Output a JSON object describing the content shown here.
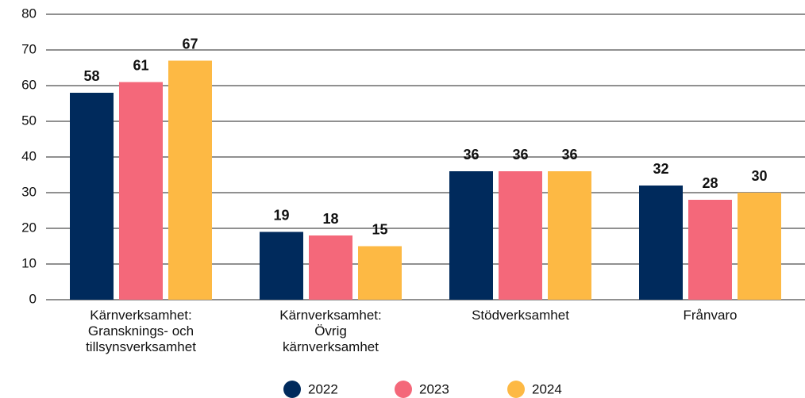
{
  "chart_data": {
    "type": "bar",
    "categories": [
      "Kärnverksamhet:\nGransknings- och\ntillsynsverksamhet",
      "Kärnverksamhet:\nÖvrig\nkärnverksamhet",
      "Stödverksamhet",
      "Frånvaro"
    ],
    "series": [
      {
        "name": "2022",
        "color": "#002a5c",
        "values": [
          58,
          19,
          36,
          32
        ]
      },
      {
        "name": "2023",
        "color": "#f4687a",
        "values": [
          61,
          18,
          36,
          28
        ]
      },
      {
        "name": "2024",
        "color": "#fdb944",
        "values": [
          67,
          15,
          36,
          30
        ]
      }
    ],
    "ylim": [
      0,
      80
    ],
    "yticks": [
      0,
      10,
      20,
      30,
      40,
      50,
      60,
      70,
      80
    ],
    "grid": true,
    "legend": "bottom"
  }
}
